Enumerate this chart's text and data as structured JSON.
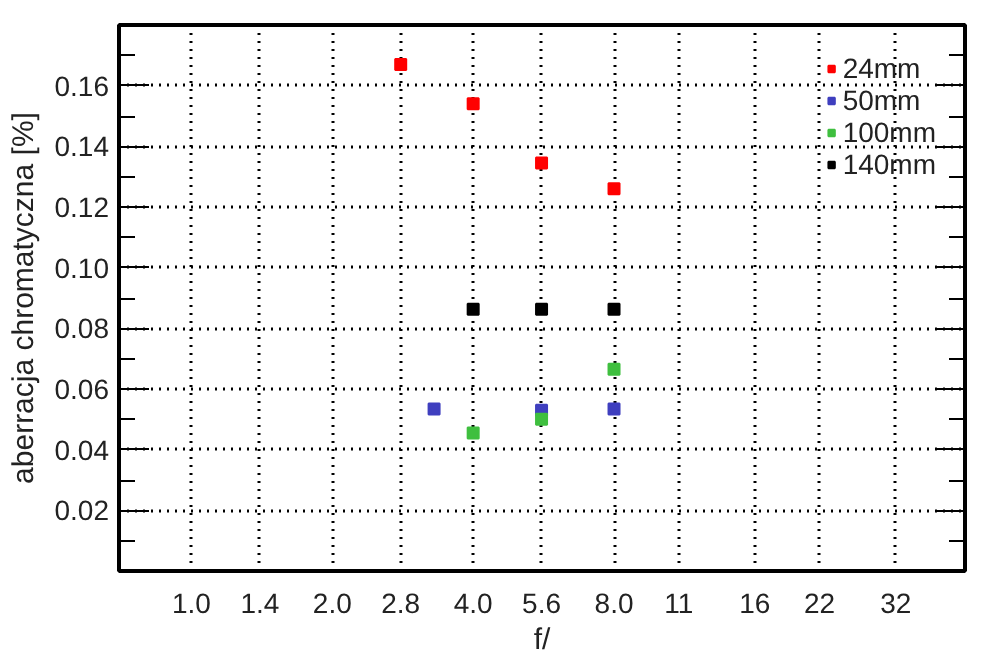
{
  "chart_data": {
    "type": "scatter",
    "xlabel": "f/",
    "ylabel": "aberracja chromatyczna [%]",
    "log": "x",
    "xlim": [
      0.7,
      45
    ],
    "ylim": [
      0,
      0.18
    ],
    "xticks": [
      {
        "value": 1.0,
        "label": "1.0"
      },
      1.4,
      {
        "value": 2.0,
        "label": "2.0"
      },
      2.8,
      {
        "value": 4.0,
        "label": "4.0"
      },
      5.6,
      {
        "value": 8.0,
        "label": "8.0"
      },
      11,
      16,
      22,
      32
    ],
    "yticks": [
      {
        "value": 0.01,
        "label": null
      },
      0.02,
      {
        "value": 0.03,
        "label": null
      },
      0.04,
      {
        "value": 0.05,
        "label": null
      },
      0.06,
      {
        "value": 0.07,
        "label": null
      },
      0.08,
      {
        "value": 0.09,
        "label": null
      },
      {
        "value": 0.1,
        "label": "0.10"
      },
      {
        "value": 0.11,
        "label": null
      },
      0.12,
      {
        "value": 0.13,
        "label": null
      },
      0.14,
      {
        "value": 0.15,
        "label": null
      },
      0.16,
      {
        "value": 0.17,
        "label": null
      }
    ],
    "grid": true,
    "legend": "top right",
    "marker": "square",
    "series": [
      {
        "name": "24mm",
        "color": "#ff0000",
        "x": [
          2.8,
          4.0,
          5.6,
          8.0
        ],
        "values": [
          0.167,
          0.154,
          0.1345,
          0.126
        ]
      },
      {
        "name": "50mm",
        "color": "#3f3fbf",
        "x": [
          3.3,
          5.6,
          8.0
        ],
        "values": [
          0.0534,
          0.053,
          0.0534
        ]
      },
      {
        "name": "100mm",
        "color": "#3fbf3f",
        "x": [
          4.0,
          5.6,
          8.0
        ],
        "values": [
          0.0455,
          0.05,
          0.0665
        ]
      },
      {
        "name": "140mm",
        "color": "#000000",
        "x": [
          4.0,
          5.6,
          8.0
        ],
        "values": [
          0.0863,
          0.0863,
          0.0863
        ]
      }
    ]
  }
}
